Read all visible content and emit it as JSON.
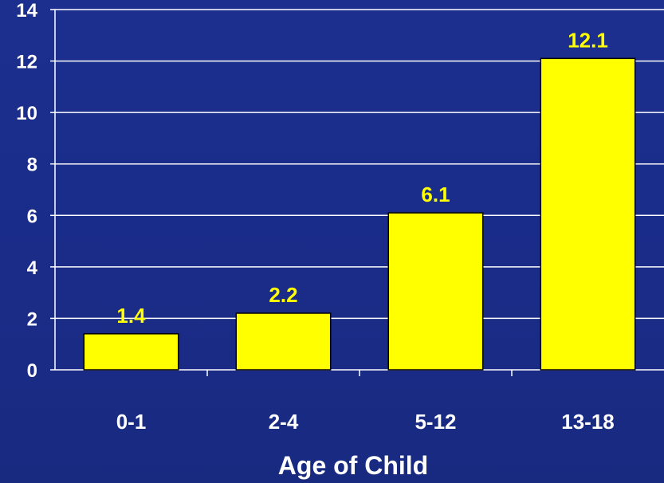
{
  "chart_data": {
    "type": "bar",
    "categories": [
      "0-1",
      "2-4",
      "5-12",
      "13-18"
    ],
    "values": [
      1.4,
      2.2,
      6.1,
      12.1
    ],
    "data_labels": [
      "1.4",
      "2.2",
      "6.1",
      "12.1"
    ],
    "title": "",
    "xlabel": "Age of Child",
    "ylabel": "",
    "ylim": [
      0,
      14
    ],
    "yticks": [
      0,
      2,
      4,
      6,
      8,
      10,
      12,
      14
    ],
    "grid": true,
    "legend": "none",
    "colors": {
      "bar": "#ffff00",
      "bar_outline": "#000000",
      "data_label": "#ffff00",
      "text": "#ffffff",
      "gridline": "#ffffff",
      "background": "#1c2f8f"
    }
  }
}
